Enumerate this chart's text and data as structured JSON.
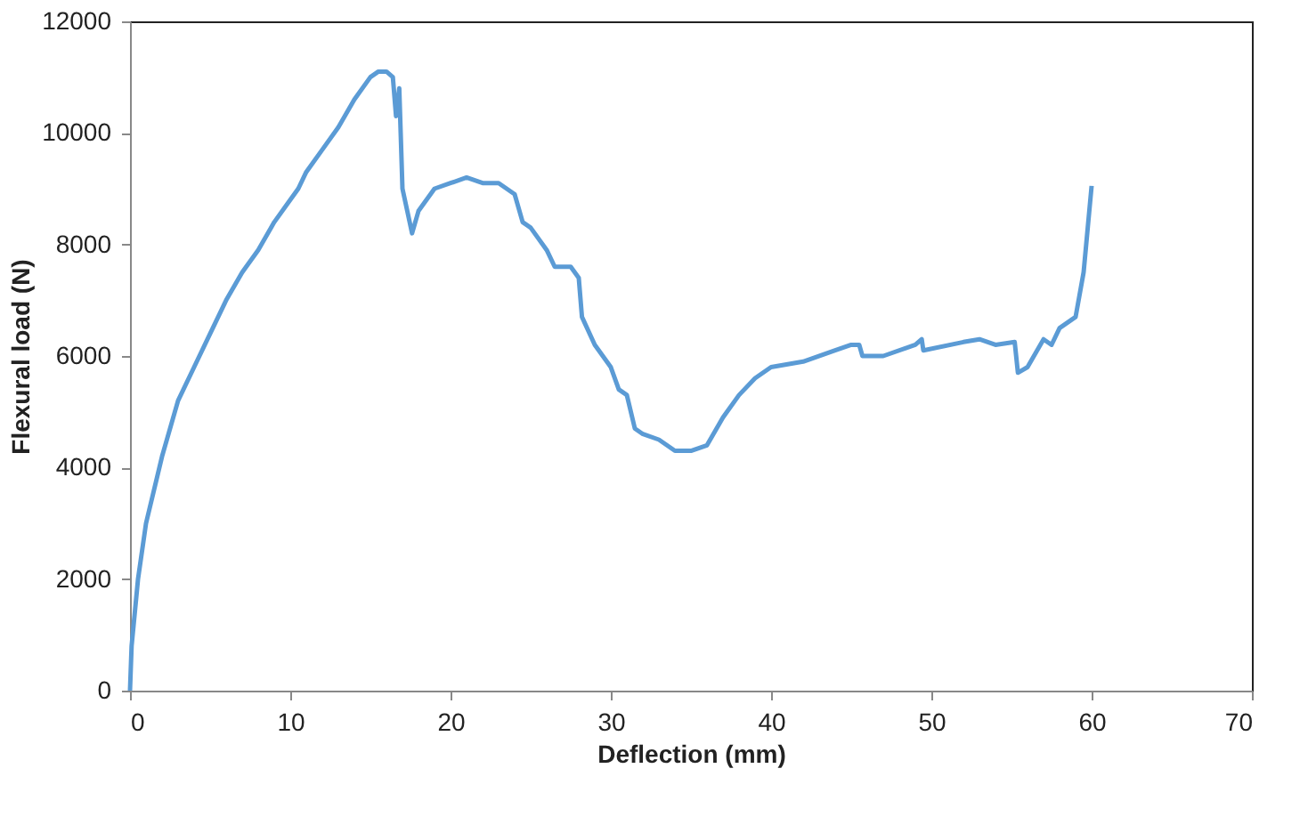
{
  "chart_data": {
    "type": "line",
    "xlabel": "Deflection (mm)",
    "ylabel": "Flexural load (N)",
    "xlim": [
      0,
      70
    ],
    "xticks": [
      0,
      10,
      20,
      30,
      40,
      50,
      60,
      70
    ],
    "ylim": [
      0,
      12000
    ],
    "yticks": [
      0,
      2000,
      4000,
      6000,
      8000,
      10000,
      12000
    ],
    "grid": false,
    "legend": false,
    "marker": "none",
    "line_style": "solid",
    "series": [
      {
        "color": "#5b9bd5",
        "x": [
          0,
          0.1,
          0.5,
          1,
          2,
          3,
          4,
          5,
          6,
          7,
          8,
          9,
          10,
          10.5,
          11,
          12,
          13,
          14,
          15,
          15.5,
          16,
          16.4,
          16.6,
          16.8,
          17,
          17.3,
          17.6,
          18,
          19,
          20,
          21,
          22,
          23,
          24,
          24.5,
          25,
          26,
          26.5,
          27.5,
          28,
          28.2,
          29,
          30,
          30.5,
          31,
          31.5,
          32,
          33,
          34,
          35,
          36,
          37,
          38,
          39,
          40,
          42,
          44,
          45,
          45.5,
          45.7,
          47,
          49,
          49.4,
          49.5,
          52,
          53,
          54,
          55.2,
          55.4,
          56,
          57,
          57.5,
          58,
          59,
          59.5,
          60
        ],
        "values": [
          0,
          800,
          2000,
          3000,
          4200,
          5200,
          5800,
          6400,
          7000,
          7500,
          7900,
          8400,
          8800,
          9000,
          9300,
          9700,
          10100,
          10600,
          11000,
          11100,
          11100,
          11000,
          10300,
          10800,
          9000,
          8600,
          8200,
          8600,
          9000,
          9100,
          9200,
          9100,
          9100,
          8900,
          8400,
          8300,
          7900,
          7600,
          7600,
          7400,
          6700,
          6200,
          5800,
          5400,
          5300,
          4700,
          4600,
          4500,
          4300,
          4300,
          4400,
          4900,
          5300,
          5600,
          5800,
          5900,
          6100,
          6200,
          6200,
          6000,
          6000,
          6200,
          6300,
          6100,
          6250,
          6300,
          6200,
          6250,
          5700,
          5800,
          6300,
          6200,
          6500,
          6700,
          7500,
          9050
        ]
      }
    ]
  }
}
